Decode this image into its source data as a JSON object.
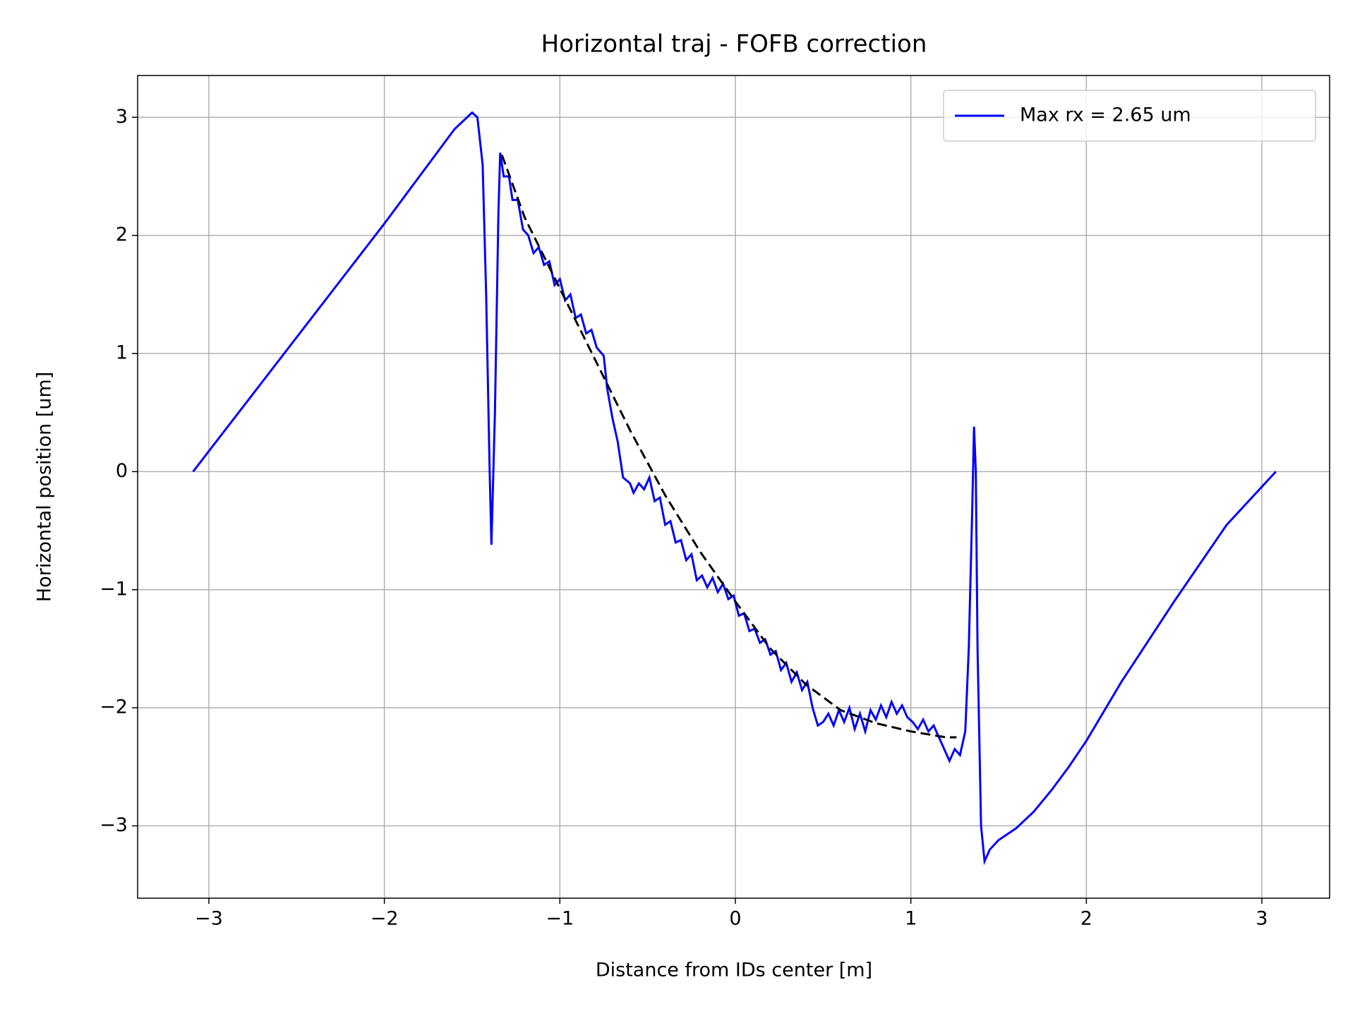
{
  "chart_data": {
    "type": "line",
    "title": "Horizontal traj - FOFB correction",
    "xlabel": "Distance from IDs center [m]",
    "ylabel": "Horizontal position [um]",
    "xlim": [
      -3.406,
      3.386
    ],
    "ylim": [
      -3.612,
      3.354
    ],
    "xticks": [
      {
        "value": -3,
        "label": "−3"
      },
      {
        "value": -2,
        "label": "−2"
      },
      {
        "value": -1,
        "label": "−1"
      },
      0,
      1,
      2,
      3
    ],
    "yticks": [
      {
        "value": -3,
        "label": "−3"
      },
      {
        "value": -2,
        "label": "−2"
      },
      {
        "value": -1,
        "label": "−1"
      },
      0,
      1,
      2,
      3
    ],
    "grid": true,
    "legend": "upper right",
    "series": [
      {
        "name": "Max rx = 2.65 um",
        "color": "#0000ff",
        "style": "solid",
        "x": [
          -3.09,
          -2.0,
          -1.75,
          -1.6,
          -1.5,
          -1.47,
          -1.44,
          -1.42,
          -1.4,
          -1.39,
          -1.37,
          -1.35,
          -1.34,
          -1.32,
          -1.29,
          -1.27,
          -1.24,
          -1.21,
          -1.18,
          -1.15,
          -1.12,
          -1.09,
          -1.06,
          -1.03,
          -1.0,
          -0.97,
          -0.94,
          -0.91,
          -0.88,
          -0.85,
          -0.82,
          -0.79,
          -0.75,
          -0.73,
          -0.7,
          -0.67,
          -0.64,
          -0.6,
          -0.58,
          -0.55,
          -0.52,
          -0.49,
          -0.46,
          -0.43,
          -0.4,
          -0.37,
          -0.34,
          -0.31,
          -0.28,
          -0.25,
          -0.22,
          -0.19,
          -0.16,
          -0.13,
          -0.1,
          -0.07,
          -0.04,
          -0.01,
          0.02,
          0.05,
          0.08,
          0.11,
          0.14,
          0.17,
          0.2,
          0.23,
          0.26,
          0.29,
          0.32,
          0.35,
          0.38,
          0.41,
          0.44,
          0.47,
          0.5,
          0.53,
          0.56,
          0.59,
          0.62,
          0.65,
          0.68,
          0.71,
          0.74,
          0.77,
          0.8,
          0.83,
          0.86,
          0.89,
          0.92,
          0.95,
          0.98,
          1.01,
          1.04,
          1.07,
          1.1,
          1.13,
          1.16,
          1.19,
          1.22,
          1.25,
          1.28,
          1.31,
          1.33,
          1.35,
          1.36,
          1.37,
          1.38,
          1.4,
          1.42,
          1.45,
          1.5,
          1.6,
          1.7,
          1.8,
          1.9,
          2.0,
          2.2,
          2.5,
          2.8,
          3.08
        ],
        "values": [
          0,
          2.1,
          2.6,
          2.9,
          3.04,
          3.0,
          2.6,
          1.5,
          0,
          -0.62,
          0.5,
          2.2,
          2.7,
          2.5,
          2.5,
          2.3,
          2.3,
          2.05,
          2.0,
          1.85,
          1.9,
          1.75,
          1.78,
          1.58,
          1.63,
          1.45,
          1.5,
          1.3,
          1.33,
          1.17,
          1.2,
          1.05,
          0.98,
          0.7,
          0.45,
          0.25,
          -0.05,
          -0.1,
          -0.18,
          -0.1,
          -0.15,
          -0.05,
          -0.25,
          -0.22,
          -0.45,
          -0.42,
          -0.6,
          -0.58,
          -0.75,
          -0.7,
          -0.92,
          -0.88,
          -0.98,
          -0.9,
          -1.02,
          -0.95,
          -1.08,
          -1.05,
          -1.22,
          -1.2,
          -1.35,
          -1.33,
          -1.45,
          -1.42,
          -1.55,
          -1.52,
          -1.68,
          -1.62,
          -1.78,
          -1.7,
          -1.85,
          -1.78,
          -2.0,
          -2.15,
          -2.12,
          -2.05,
          -2.15,
          -2.02,
          -2.12,
          -2.0,
          -2.18,
          -2.05,
          -2.2,
          -2.02,
          -2.1,
          -1.98,
          -2.08,
          -1.95,
          -2.05,
          -1.98,
          -2.08,
          -2.12,
          -2.18,
          -2.1,
          -2.2,
          -2.15,
          -2.25,
          -2.35,
          -2.45,
          -2.35,
          -2.4,
          -2.2,
          -1.5,
          -0.3,
          0.38,
          0.0,
          -1.5,
          -3.0,
          -3.3,
          -3.2,
          -3.12,
          -3.02,
          -2.88,
          -2.7,
          -2.5,
          -2.28,
          -1.78,
          -1.1,
          -0.45,
          0
        ]
      },
      {
        "color": "#000000",
        "style": "dashed",
        "x": [
          -1.33,
          -1.2,
          -1.0,
          -0.8,
          -0.6,
          -0.4,
          -0.2,
          0,
          0.2,
          0.4,
          0.6,
          0.8,
          1.0,
          1.2,
          1.26
        ],
        "values": [
          2.68,
          2.15,
          1.55,
          0.95,
          0.35,
          -0.2,
          -0.68,
          -1.1,
          -1.5,
          -1.8,
          -2.02,
          -2.13,
          -2.2,
          -2.25,
          -2.25
        ]
      }
    ]
  }
}
